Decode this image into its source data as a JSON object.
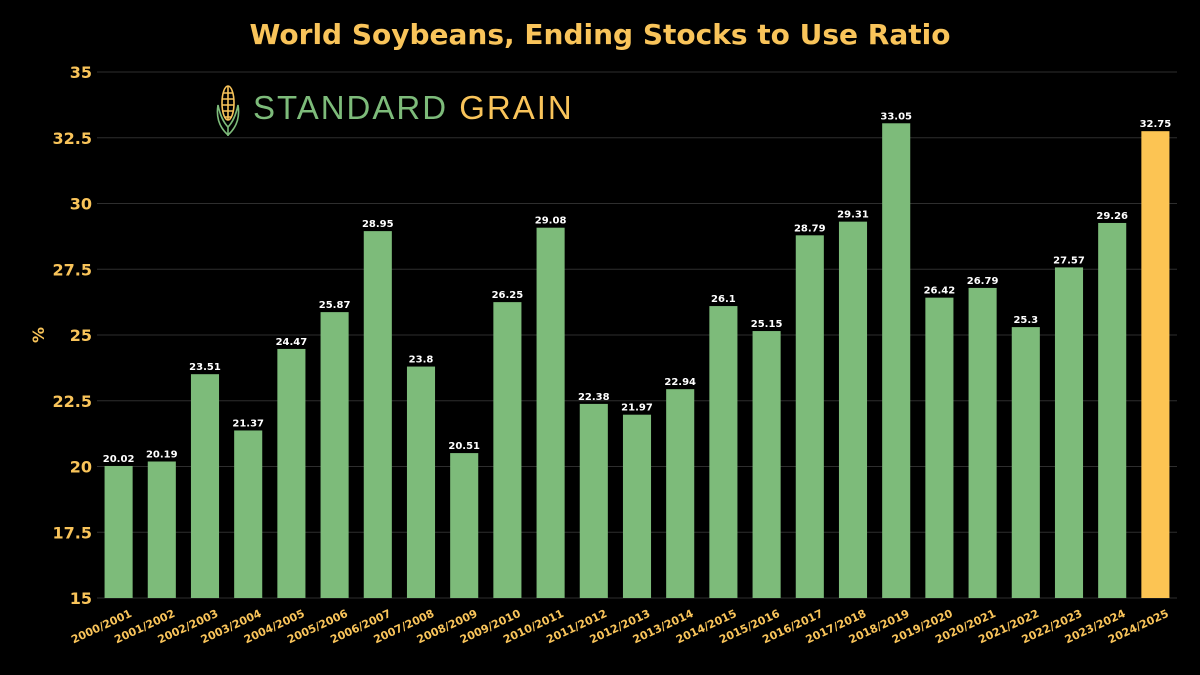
{
  "colors": {
    "background": "#000000",
    "title": "#F9C45A",
    "axis_text": "#F9C45A",
    "bar": "#7DBB7A",
    "bar_highlight": "#FCC453",
    "gridline": "#2E2E2E",
    "value_label": "#FFFFFF",
    "brand_green": "#7DBB7A",
    "brand_gold": "#F9C45A"
  },
  "logo": {
    "icon": "corn-icon",
    "word1": "STANDARD",
    "word2": "GRAIN"
  },
  "chart_data": {
    "type": "bar",
    "title": "World Soybeans, Ending Stocks to Use Ratio",
    "xlabel": "",
    "ylabel": "%",
    "ylim": [
      15,
      35
    ],
    "yticks": [
      15,
      17.5,
      20,
      22.5,
      25,
      27.5,
      30,
      32.5,
      35
    ],
    "ytick_labels": [
      "15",
      "17.5",
      "20",
      "22.5",
      "25",
      "27.5",
      "30",
      "32.5",
      "35"
    ],
    "grid": true,
    "highlight_index": 24,
    "categories": [
      "2000/2001",
      "2001/2002",
      "2002/2003",
      "2003/2004",
      "2004/2005",
      "2005/2006",
      "2006/2007",
      "2007/2008",
      "2008/2009",
      "2009/2010",
      "2010/2011",
      "2011/2012",
      "2012/2013",
      "2013/2014",
      "2014/2015",
      "2015/2016",
      "2016/2017",
      "2017/2018",
      "2018/2019",
      "2019/2020",
      "2020/2021",
      "2021/2022",
      "2022/2023",
      "2023/2024",
      "2024/2025"
    ],
    "values": [
      20.02,
      20.19,
      23.51,
      21.37,
      24.47,
      25.87,
      28.95,
      23.8,
      20.51,
      26.25,
      29.08,
      22.38,
      21.97,
      22.94,
      26.1,
      25.15,
      28.79,
      29.31,
      33.05,
      26.42,
      26.79,
      25.3,
      27.57,
      29.26,
      32.75
    ],
    "value_labels": [
      "20.02",
      "20.19",
      "23.51",
      "21.37",
      "24.47",
      "25.87",
      "28.95",
      "23.8",
      "20.51",
      "26.25",
      "29.08",
      "22.38",
      "21.97",
      "22.94",
      "26.1",
      "25.15",
      "28.79",
      "29.31",
      "33.05",
      "26.42",
      "26.79",
      "25.3",
      "27.57",
      "29.26",
      "32.75"
    ]
  }
}
